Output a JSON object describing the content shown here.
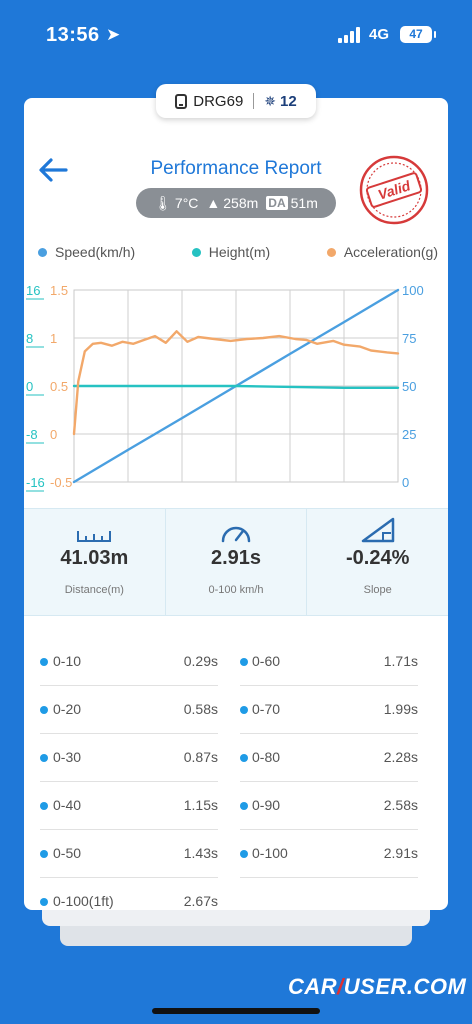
{
  "status_bar": {
    "time": "13:56",
    "network": "4G",
    "battery": "47"
  },
  "device": {
    "name": "DRG69",
    "satellites": "12"
  },
  "header": {
    "title": "Performance Report",
    "stamp": "Valid"
  },
  "conditions": {
    "temperature": "7°C",
    "altitude": "258m",
    "da_badge": "DA",
    "density_altitude": "51m"
  },
  "legend": [
    {
      "label": "Speed(km/h)",
      "color": "#4a9fe0"
    },
    {
      "label": "Height(m)",
      "color": "#26c2c2"
    },
    {
      "label": "Acceleration(g)",
      "color": "#f2a86a"
    }
  ],
  "chart_data": {
    "type": "line",
    "x_grid_divisions": 6,
    "y_grid_divisions": 4,
    "axes": {
      "height_left": {
        "ticks": [
          "16",
          "8",
          "0",
          "-8",
          "-16"
        ],
        "range": [
          -16,
          16
        ],
        "color": "#26c2c2"
      },
      "accel_left": {
        "ticks": [
          "1.5",
          "1",
          "0.5",
          "0",
          "-0.5"
        ],
        "range": [
          -0.5,
          1.5
        ],
        "color": "#f2a86a"
      },
      "speed_right": {
        "ticks": [
          "100",
          "75",
          "50",
          "25",
          "0"
        ],
        "range": [
          0,
          100
        ],
        "color": "#4a9fe0"
      }
    },
    "series": [
      {
        "name": "Speed(km/h)",
        "axis": "speed_right",
        "color": "#4a9fe0",
        "t": [
          0,
          1,
          2,
          3,
          4,
          5,
          6
        ],
        "values": [
          0,
          16.7,
          33.3,
          50,
          66.7,
          83.3,
          100
        ]
      },
      {
        "name": "Height(m)",
        "axis": "height_left",
        "color": "#26c2c2",
        "t": [
          0,
          3,
          5,
          6
        ],
        "values": [
          0,
          0,
          -0.3,
          -0.3
        ]
      },
      {
        "name": "Acceleration(g)",
        "axis": "accel_left",
        "color": "#f2a86a",
        "t": [
          0,
          0.08,
          0.2,
          0.35,
          0.5,
          0.7,
          0.9,
          1.1,
          1.3,
          1.5,
          1.7,
          1.9,
          2.1,
          2.3,
          2.6,
          2.9,
          3.2,
          3.5,
          3.8,
          4.1,
          4.3,
          4.5,
          4.8,
          5.0,
          5.3,
          5.5,
          5.8,
          6.0
        ],
        "values": [
          0,
          0.55,
          0.86,
          0.94,
          0.95,
          0.92,
          0.96,
          0.94,
          0.98,
          1.02,
          0.95,
          1.07,
          0.96,
          1.01,
          0.99,
          0.97,
          0.99,
          1.0,
          1.02,
          0.99,
          0.98,
          0.94,
          0.97,
          0.93,
          0.91,
          0.87,
          0.85,
          0.84
        ]
      }
    ]
  },
  "stats": [
    {
      "icon": "ruler-icon",
      "value": "41.03m",
      "label": "Distance(m)"
    },
    {
      "icon": "speedometer-icon",
      "value": "2.91s",
      "label": "0-100 km/h"
    },
    {
      "icon": "slope-icon",
      "value": "-0.24%",
      "label": "Slope"
    }
  ],
  "splits": [
    {
      "label": "0-10",
      "time": "0.29s"
    },
    {
      "label": "0-60",
      "time": "1.71s"
    },
    {
      "label": "0-20",
      "time": "0.58s"
    },
    {
      "label": "0-70",
      "time": "1.99s"
    },
    {
      "label": "0-30",
      "time": "0.87s"
    },
    {
      "label": "0-80",
      "time": "2.28s"
    },
    {
      "label": "0-40",
      "time": "1.15s"
    },
    {
      "label": "0-90",
      "time": "2.58s"
    },
    {
      "label": "0-50",
      "time": "1.43s"
    },
    {
      "label": "0-100",
      "time": "2.91s"
    },
    {
      "label": "0-100(1ft)",
      "time": "2.67s"
    }
  ],
  "watermark": {
    "part1": "CAR",
    "part2": "USER.COM"
  }
}
